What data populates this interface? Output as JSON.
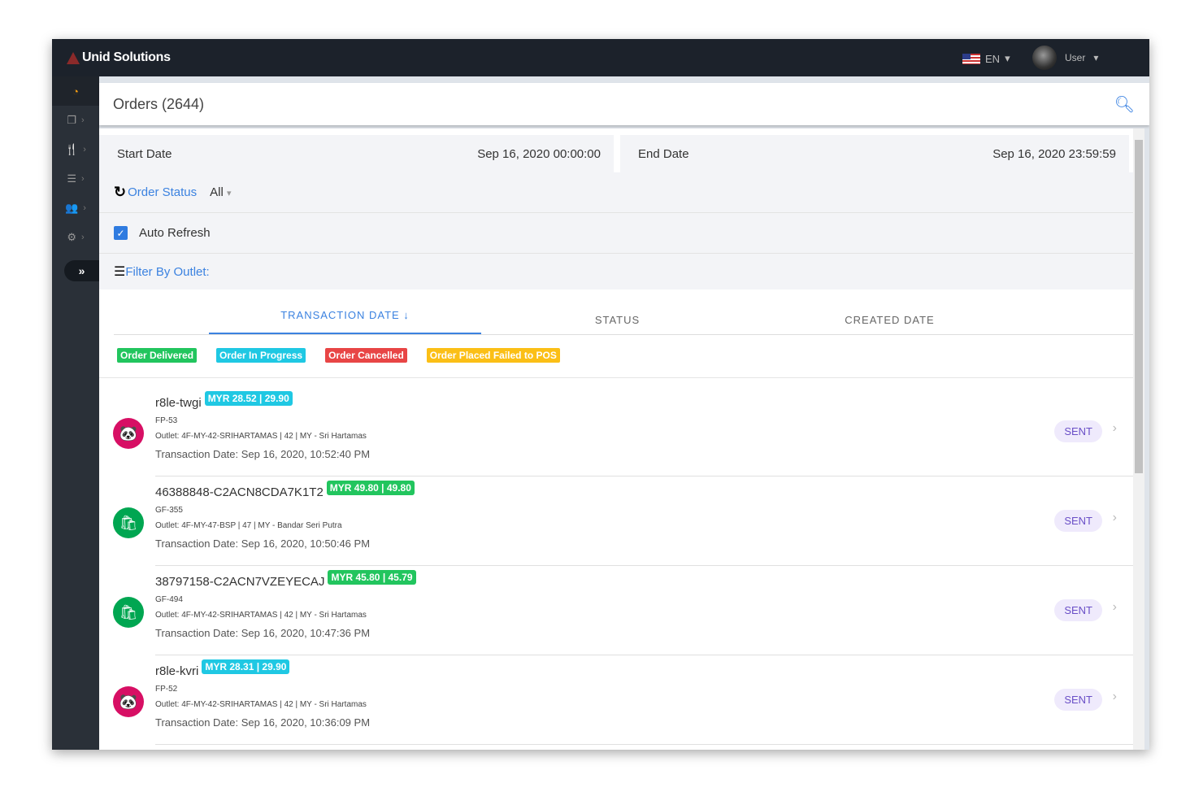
{
  "topbar": {
    "brand": "Unid Solutions",
    "language": "EN",
    "user": "User"
  },
  "sidebar": {
    "items": [
      {
        "icon": "dashboard-icon",
        "glyph": "◔"
      },
      {
        "icon": "copy-icon",
        "glyph": "❐"
      },
      {
        "icon": "utensils-icon",
        "glyph": "🍴"
      },
      {
        "icon": "database-icon",
        "glyph": "☰"
      },
      {
        "icon": "users-icon",
        "glyph": "👥"
      },
      {
        "icon": "cogs-icon",
        "glyph": "⚙"
      }
    ],
    "collapse": "»"
  },
  "header": {
    "title": "Orders (2644)"
  },
  "filters": {
    "start_label": "Start Date",
    "start_value": "Sep 16, 2020 00:00:00",
    "end_label": "End Date",
    "end_value": "Sep 16, 2020 23:59:59",
    "status_label": "Order Status",
    "status_value": "All",
    "auto_refresh": "Auto Refresh",
    "auto_refresh_checked": true,
    "outlet_label": "Filter By Outlet:"
  },
  "tabs": [
    {
      "label": "TRANSACTION DATE ↓"
    },
    {
      "label": "STATUS"
    },
    {
      "label": "CREATED DATE"
    }
  ],
  "legend": [
    {
      "label": "Order Delivered",
      "color": "#22c55e"
    },
    {
      "label": "Order In Progress",
      "color": "#1fc8e3"
    },
    {
      "label": "Order Cancelled",
      "color": "#e84545"
    },
    {
      "label": "Order Placed Failed to POS",
      "color": "#fbbf16"
    }
  ],
  "orders": [
    {
      "id": "r8le-twgi",
      "amount": "MYR 28.52 | 29.90",
      "amount_color": "#1fc8e3",
      "code": "FP-53",
      "outlet": "Outlet: 4F-MY-42-SRIHARTAMAS | 42 | MY - Sri Hartamas",
      "date": "Transaction Date: Sep 16, 2020, 10:52:40 PM",
      "status": "SENT",
      "platform": "foodpanda"
    },
    {
      "id": "46388848-C2ACN8CDA7K1T2",
      "amount": "MYR 49.80 | 49.80",
      "amount_color": "#22c55e",
      "code": "GF-355",
      "outlet": "Outlet: 4F-MY-47-BSP | 47 | MY - Bandar Seri Putra",
      "date": "Transaction Date: Sep 16, 2020, 10:50:46 PM",
      "status": "SENT",
      "platform": "grabfood"
    },
    {
      "id": "38797158-C2ACN7VZEYECAJ",
      "amount": "MYR 45.80 | 45.79",
      "amount_color": "#22c55e",
      "code": "GF-494",
      "outlet": "Outlet: 4F-MY-42-SRIHARTAMAS | 42 | MY - Sri Hartamas",
      "date": "Transaction Date: Sep 16, 2020, 10:47:36 PM",
      "status": "SENT",
      "platform": "grabfood"
    },
    {
      "id": "r8le-kvri",
      "amount": "MYR 28.31 | 29.90",
      "amount_color": "#1fc8e3",
      "code": "FP-52",
      "outlet": "Outlet: 4F-MY-42-SRIHARTAMAS | 42 | MY - Sri Hartamas",
      "date": "Transaction Date: Sep 16, 2020, 10:36:09 PM",
      "status": "SENT",
      "platform": "foodpanda"
    }
  ]
}
